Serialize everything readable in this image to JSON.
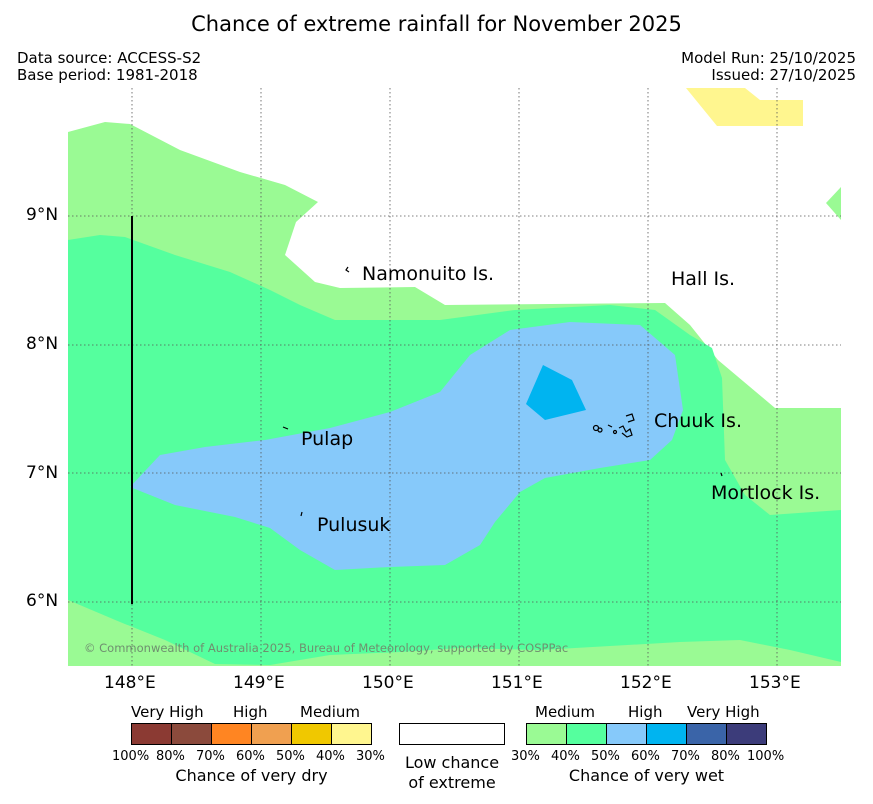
{
  "title": "Chance of extreme rainfall for November 2025",
  "meta": {
    "data_source": "Data source: ACCESS-S2",
    "base_period": "Base period: 1981-2018",
    "model_run": "Model Run: 25/10/2025",
    "issued": "Issued: 27/10/2025"
  },
  "map": {
    "lat_ticks": [
      "9°N",
      "8°N",
      "7°N",
      "6°N"
    ],
    "lon_ticks": [
      "148°E",
      "149°E",
      "150°E",
      "151°E",
      "152°E",
      "153°E"
    ],
    "places": {
      "namonuito": "Namonuito Is.",
      "hall": "Hall Is.",
      "pulap": "Pulap",
      "chuuk": "Chuuk Is.",
      "mortlock": "Mortlock Is.",
      "pulusuk": "Pulusuk"
    },
    "copyright": "© Commonwealth of Australia 2025, Bureau of Meteorology, supported by COSPPac"
  },
  "legend": {
    "dry": {
      "headings": [
        "Very High",
        "High",
        "Medium"
      ],
      "percents": [
        "100%",
        "80%",
        "70%",
        "60%",
        "50%",
        "40%",
        "30%"
      ],
      "colors": [
        "#8b3a33",
        "#8b4a3c",
        "#ff8522",
        "#f0a050",
        "#f0c800",
        "#fff68f"
      ],
      "caption": "Chance of very dry"
    },
    "neutral": {
      "line1": "Low chance",
      "line2": "of extreme"
    },
    "wet": {
      "headings": [
        "Medium",
        "High",
        "Very High"
      ],
      "percents": [
        "30%",
        "40%",
        "50%",
        "60%",
        "70%",
        "80%",
        "100%"
      ],
      "colors": [
        "#9afa94",
        "#55ff9e",
        "#86c9fa",
        "#00b4f0",
        "#3a64a8",
        "#3c3c7a"
      ],
      "caption": "Chance of very wet"
    }
  },
  "colors": {
    "wet_medium_low": "#9afa94",
    "wet_medium_high": "#55ff9e",
    "wet_high_low": "#86c9fa",
    "wet_high_high": "#00b4f0",
    "dry_medium_low": "#fff68f"
  }
}
